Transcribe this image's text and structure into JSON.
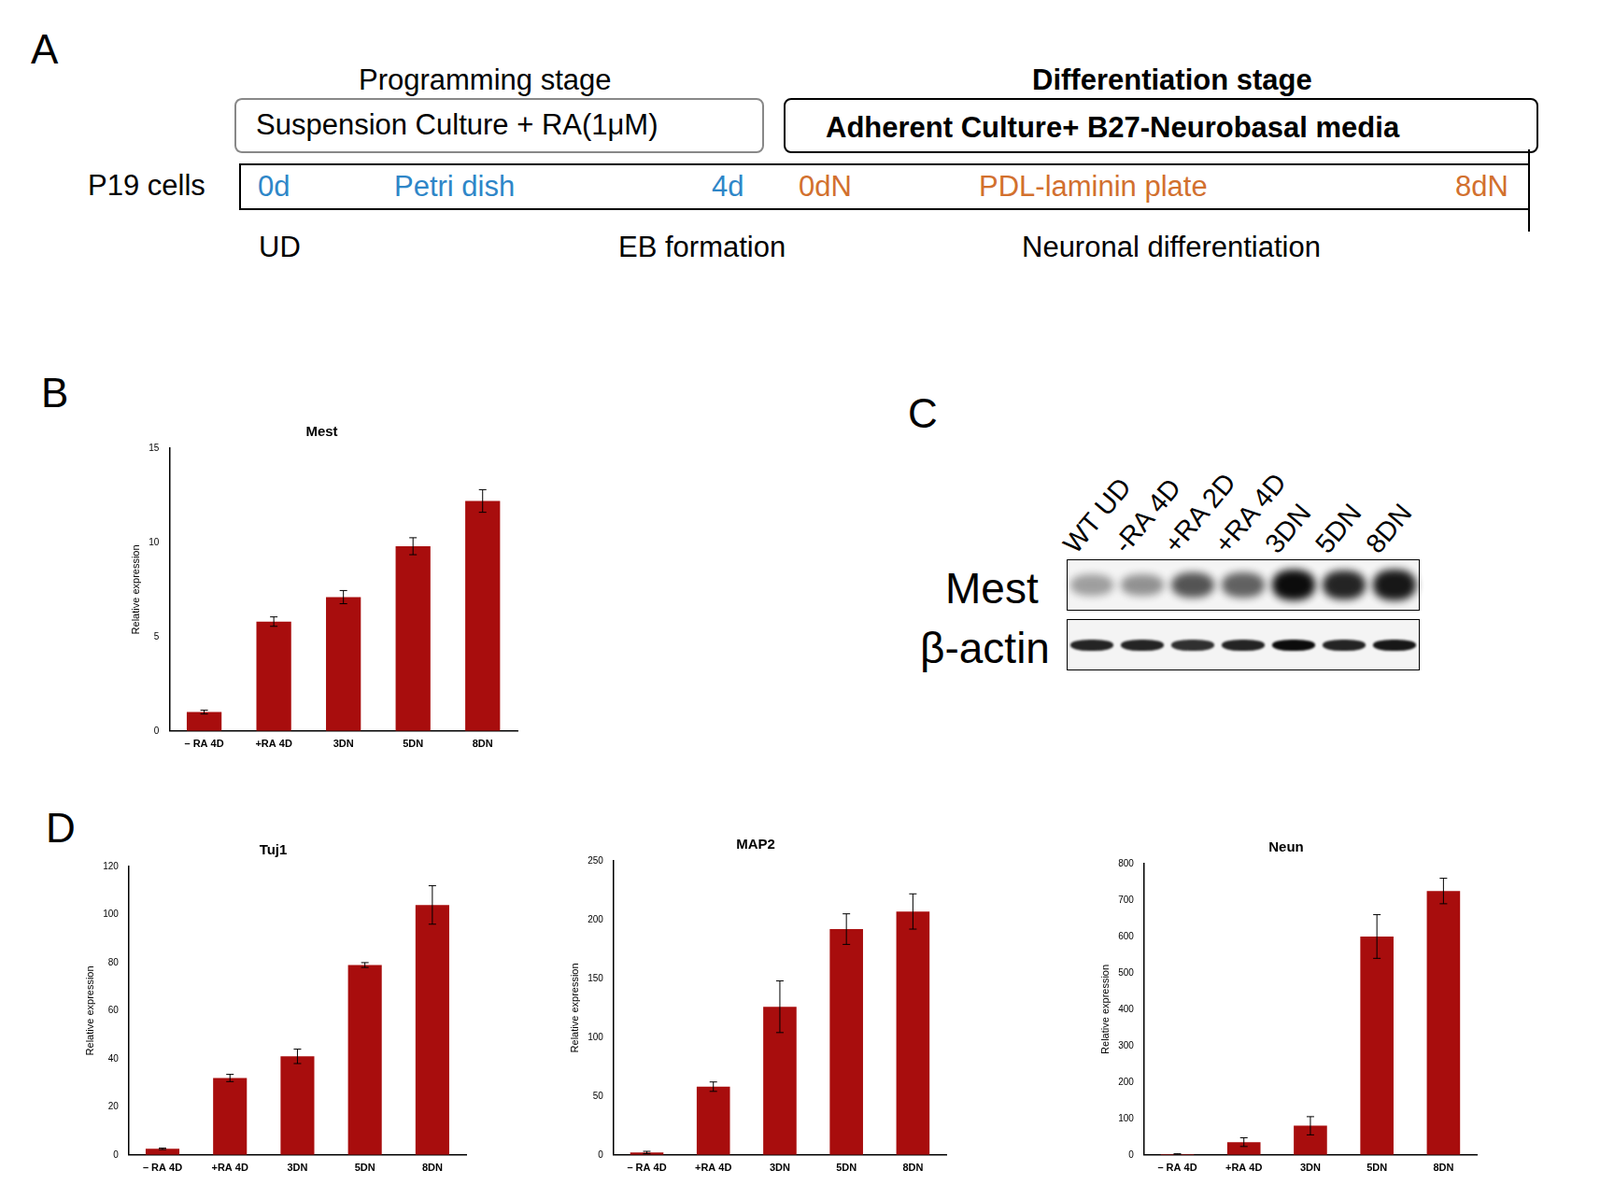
{
  "panel_labels": [
    "A",
    "B",
    "C",
    "D"
  ],
  "diagram": {
    "stages": [
      {
        "title": "Programming stage",
        "box": "Suspension Culture + RA(1μM)"
      },
      {
        "title": "Differentiation stage",
        "box": "Adherent Culture+ B27-Neurobasal media"
      }
    ],
    "row_label": "P19 cells",
    "timeline": [
      {
        "text": "0d",
        "color": "#2e86c8"
      },
      {
        "text": "Petri dish",
        "color": "#2e86c8"
      },
      {
        "text": "4d",
        "color": "#2e86c8"
      },
      {
        "text": "0dN",
        "color": "#d2702e"
      },
      {
        "text": "PDL-laminin plate",
        "color": "#d2702e"
      },
      {
        "text": "8dN",
        "color": "#d2702e"
      }
    ],
    "phases": [
      "UD",
      "EB formation",
      "Neuronal differentiation"
    ]
  },
  "blot": {
    "lanes": [
      "WT UD",
      "-RA 4D",
      "+RA 2D",
      "+RA 4D",
      "3DN",
      "5DN",
      "8DN"
    ],
    "rows": [
      {
        "label": "Mest",
        "intensity": [
          0.35,
          0.4,
          0.65,
          0.6,
          0.95,
          0.85,
          0.9
        ]
      },
      {
        "label": "β-actin",
        "intensity": [
          0.85,
          0.85,
          0.8,
          0.85,
          0.95,
          0.85,
          0.9
        ]
      }
    ]
  },
  "chart_data": [
    {
      "type": "bar",
      "title": "Mest",
      "y_label": "Relative expression",
      "categories": [
        "– RA 4D",
        "+RA 4D",
        "3DN",
        "5DN",
        "8DN"
      ],
      "values": [
        1.0,
        5.8,
        7.1,
        9.8,
        12.2
      ],
      "errors": [
        0.1,
        0.25,
        0.35,
        0.45,
        0.6
      ],
      "color": "#a80d0d",
      "ylim": [
        0,
        15
      ],
      "yticks": [
        0,
        5,
        10,
        15
      ],
      "grid": false
    },
    {
      "type": "bar",
      "title": "Tuj1",
      "y_label": "Relative expression",
      "categories": [
        "– RA 4D",
        "+RA 4D",
        "3DN",
        "5DN",
        "8DN"
      ],
      "values": [
        2.5,
        32,
        41,
        79,
        104
      ],
      "errors": [
        0.3,
        1.5,
        3,
        1,
        8
      ],
      "color": "#a80d0d",
      "ylim": [
        0,
        120
      ],
      "yticks": [
        0,
        20,
        40,
        60,
        80,
        100,
        120
      ],
      "grid": false
    },
    {
      "type": "bar",
      "title": "MAP2",
      "y_label": "Relative expression",
      "categories": [
        "– RA 4D",
        "+RA 4D",
        "3DN",
        "5DN",
        "8DN"
      ],
      "values": [
        2,
        58,
        126,
        192,
        207
      ],
      "errors": [
        1,
        4,
        22,
        13,
        15
      ],
      "color": "#a80d0d",
      "ylim": [
        0,
        250
      ],
      "yticks": [
        0,
        50,
        100,
        150,
        200,
        250
      ],
      "grid": false
    },
    {
      "type": "bar",
      "title": "Neun",
      "y_label": "Relative expression",
      "categories": [
        "– RA 4D",
        "+RA 4D",
        "3DN",
        "5DN",
        "8DN"
      ],
      "values": [
        2,
        35,
        80,
        600,
        725
      ],
      "errors": [
        1,
        12,
        25,
        60,
        35
      ],
      "color": "#a80d0d",
      "ylim": [
        0,
        800
      ],
      "yticks": [
        0,
        100,
        200,
        300,
        400,
        500,
        600,
        700,
        800
      ],
      "grid": false
    }
  ]
}
